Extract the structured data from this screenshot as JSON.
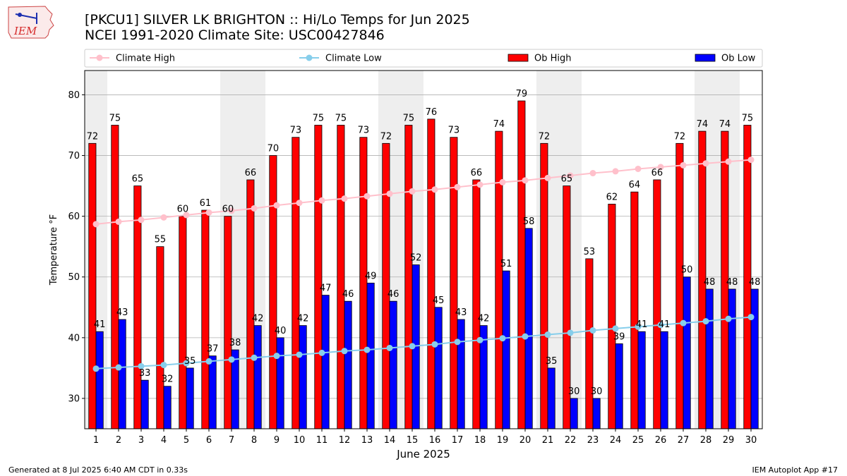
{
  "header": {
    "title_line1": "[PKCU1] SILVER LK BRIGHTON :: Hi/Lo Temps for Jun 2025",
    "title_line2": "NCEI 1991-2020 Climate Site: USC00427846",
    "logo_text": "IEM"
  },
  "footer": {
    "generated": "Generated at 8 Jul 2025 6:40 AM CDT in 0.33s",
    "app": "IEM Autoplot App #17"
  },
  "colors": {
    "ob_high": "#ff0000",
    "ob_low": "#0000ff",
    "climate_high": "#ffc0cb",
    "climate_low": "#87ceeb",
    "weekend_band": "#eeeeee",
    "grid": "#b0b0b0"
  },
  "chart_data": {
    "type": "bar",
    "xlabel": "June 2025",
    "ylabel": "Temperature °F",
    "ylim": [
      25,
      84
    ],
    "yticks": [
      30,
      40,
      50,
      60,
      70,
      80
    ],
    "grid": "horizontal",
    "legend_placement": "top",
    "categories": [
      "1",
      "2",
      "3",
      "4",
      "5",
      "6",
      "7",
      "8",
      "9",
      "10",
      "11",
      "12",
      "13",
      "14",
      "15",
      "16",
      "17",
      "18",
      "19",
      "20",
      "21",
      "22",
      "23",
      "24",
      "25",
      "26",
      "27",
      "28",
      "29",
      "30"
    ],
    "shaded_days": [
      1,
      7,
      8,
      14,
      15,
      21,
      22,
      28,
      29
    ],
    "series": [
      {
        "name": "Climate High",
        "type": "line",
        "values": [
          58.7,
          59.1,
          59.4,
          59.8,
          60.2,
          60.6,
          60.9,
          61.3,
          61.8,
          62.2,
          62.6,
          62.9,
          63.3,
          63.7,
          64.1,
          64.4,
          64.8,
          65.2,
          65.6,
          65.9,
          66.3,
          66.7,
          67.1,
          67.4,
          67.8,
          68.1,
          68.4,
          68.7,
          69.0,
          69.3
        ]
      },
      {
        "name": "Climate Low",
        "type": "line",
        "values": [
          34.9,
          35.1,
          35.3,
          35.5,
          35.8,
          36.1,
          36.4,
          36.7,
          37.0,
          37.2,
          37.5,
          37.8,
          38.0,
          38.3,
          38.6,
          38.9,
          39.3,
          39.6,
          39.9,
          40.2,
          40.5,
          40.8,
          41.2,
          41.5,
          41.8,
          42.1,
          42.4,
          42.7,
          43.1,
          43.4
        ]
      },
      {
        "name": "Ob High",
        "type": "bar",
        "values": [
          72,
          75,
          65,
          55,
          60,
          61,
          60,
          66,
          70,
          73,
          75,
          75,
          73,
          72,
          75,
          76,
          73,
          66,
          74,
          79,
          72,
          65,
          53,
          62,
          64,
          66,
          72,
          74,
          74,
          75
        ]
      },
      {
        "name": "Ob Low",
        "type": "bar",
        "values": [
          41,
          43,
          33,
          32,
          35,
          37,
          38,
          42,
          40,
          42,
          47,
          46,
          49,
          46,
          52,
          45,
          43,
          42,
          51,
          58,
          35,
          30,
          30,
          39,
          41,
          41,
          50,
          48,
          48,
          48
        ]
      }
    ]
  }
}
